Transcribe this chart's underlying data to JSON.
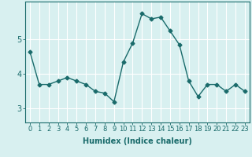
{
  "x": [
    0,
    1,
    2,
    3,
    4,
    5,
    6,
    7,
    8,
    9,
    10,
    11,
    12,
    13,
    14,
    15,
    16,
    17,
    18,
    19,
    20,
    21,
    22,
    23
  ],
  "y": [
    4.65,
    3.7,
    3.7,
    3.8,
    3.9,
    3.8,
    3.7,
    3.5,
    3.45,
    3.2,
    4.35,
    4.9,
    5.75,
    5.6,
    5.65,
    5.25,
    4.85,
    3.8,
    3.35,
    3.7,
    3.7,
    3.5,
    3.7,
    3.5
  ],
  "line_color": "#1a6b6b",
  "marker": "D",
  "marker_size": 2.5,
  "xlabel": "Humidex (Indice chaleur)",
  "xlabel_fontsize": 7,
  "xtick_labels": [
    "0",
    "1",
    "2",
    "3",
    "4",
    "5",
    "6",
    "7",
    "8",
    "9",
    "10",
    "11",
    "12",
    "13",
    "14",
    "15",
    "16",
    "17",
    "18",
    "19",
    "20",
    "21",
    "22",
    "23"
  ],
  "ytick_values": [
    3,
    4,
    5
  ],
  "ylim": [
    2.6,
    6.1
  ],
  "xlim": [
    -0.5,
    23.5
  ],
  "bg_color": "#d8f0f0",
  "grid_color": "#ffffff",
  "tick_color": "#1a6b6b",
  "spine_color": "#1a6b6b",
  "linewidth": 1.0,
  "xtick_fontsize": 6,
  "ytick_fontsize": 7
}
